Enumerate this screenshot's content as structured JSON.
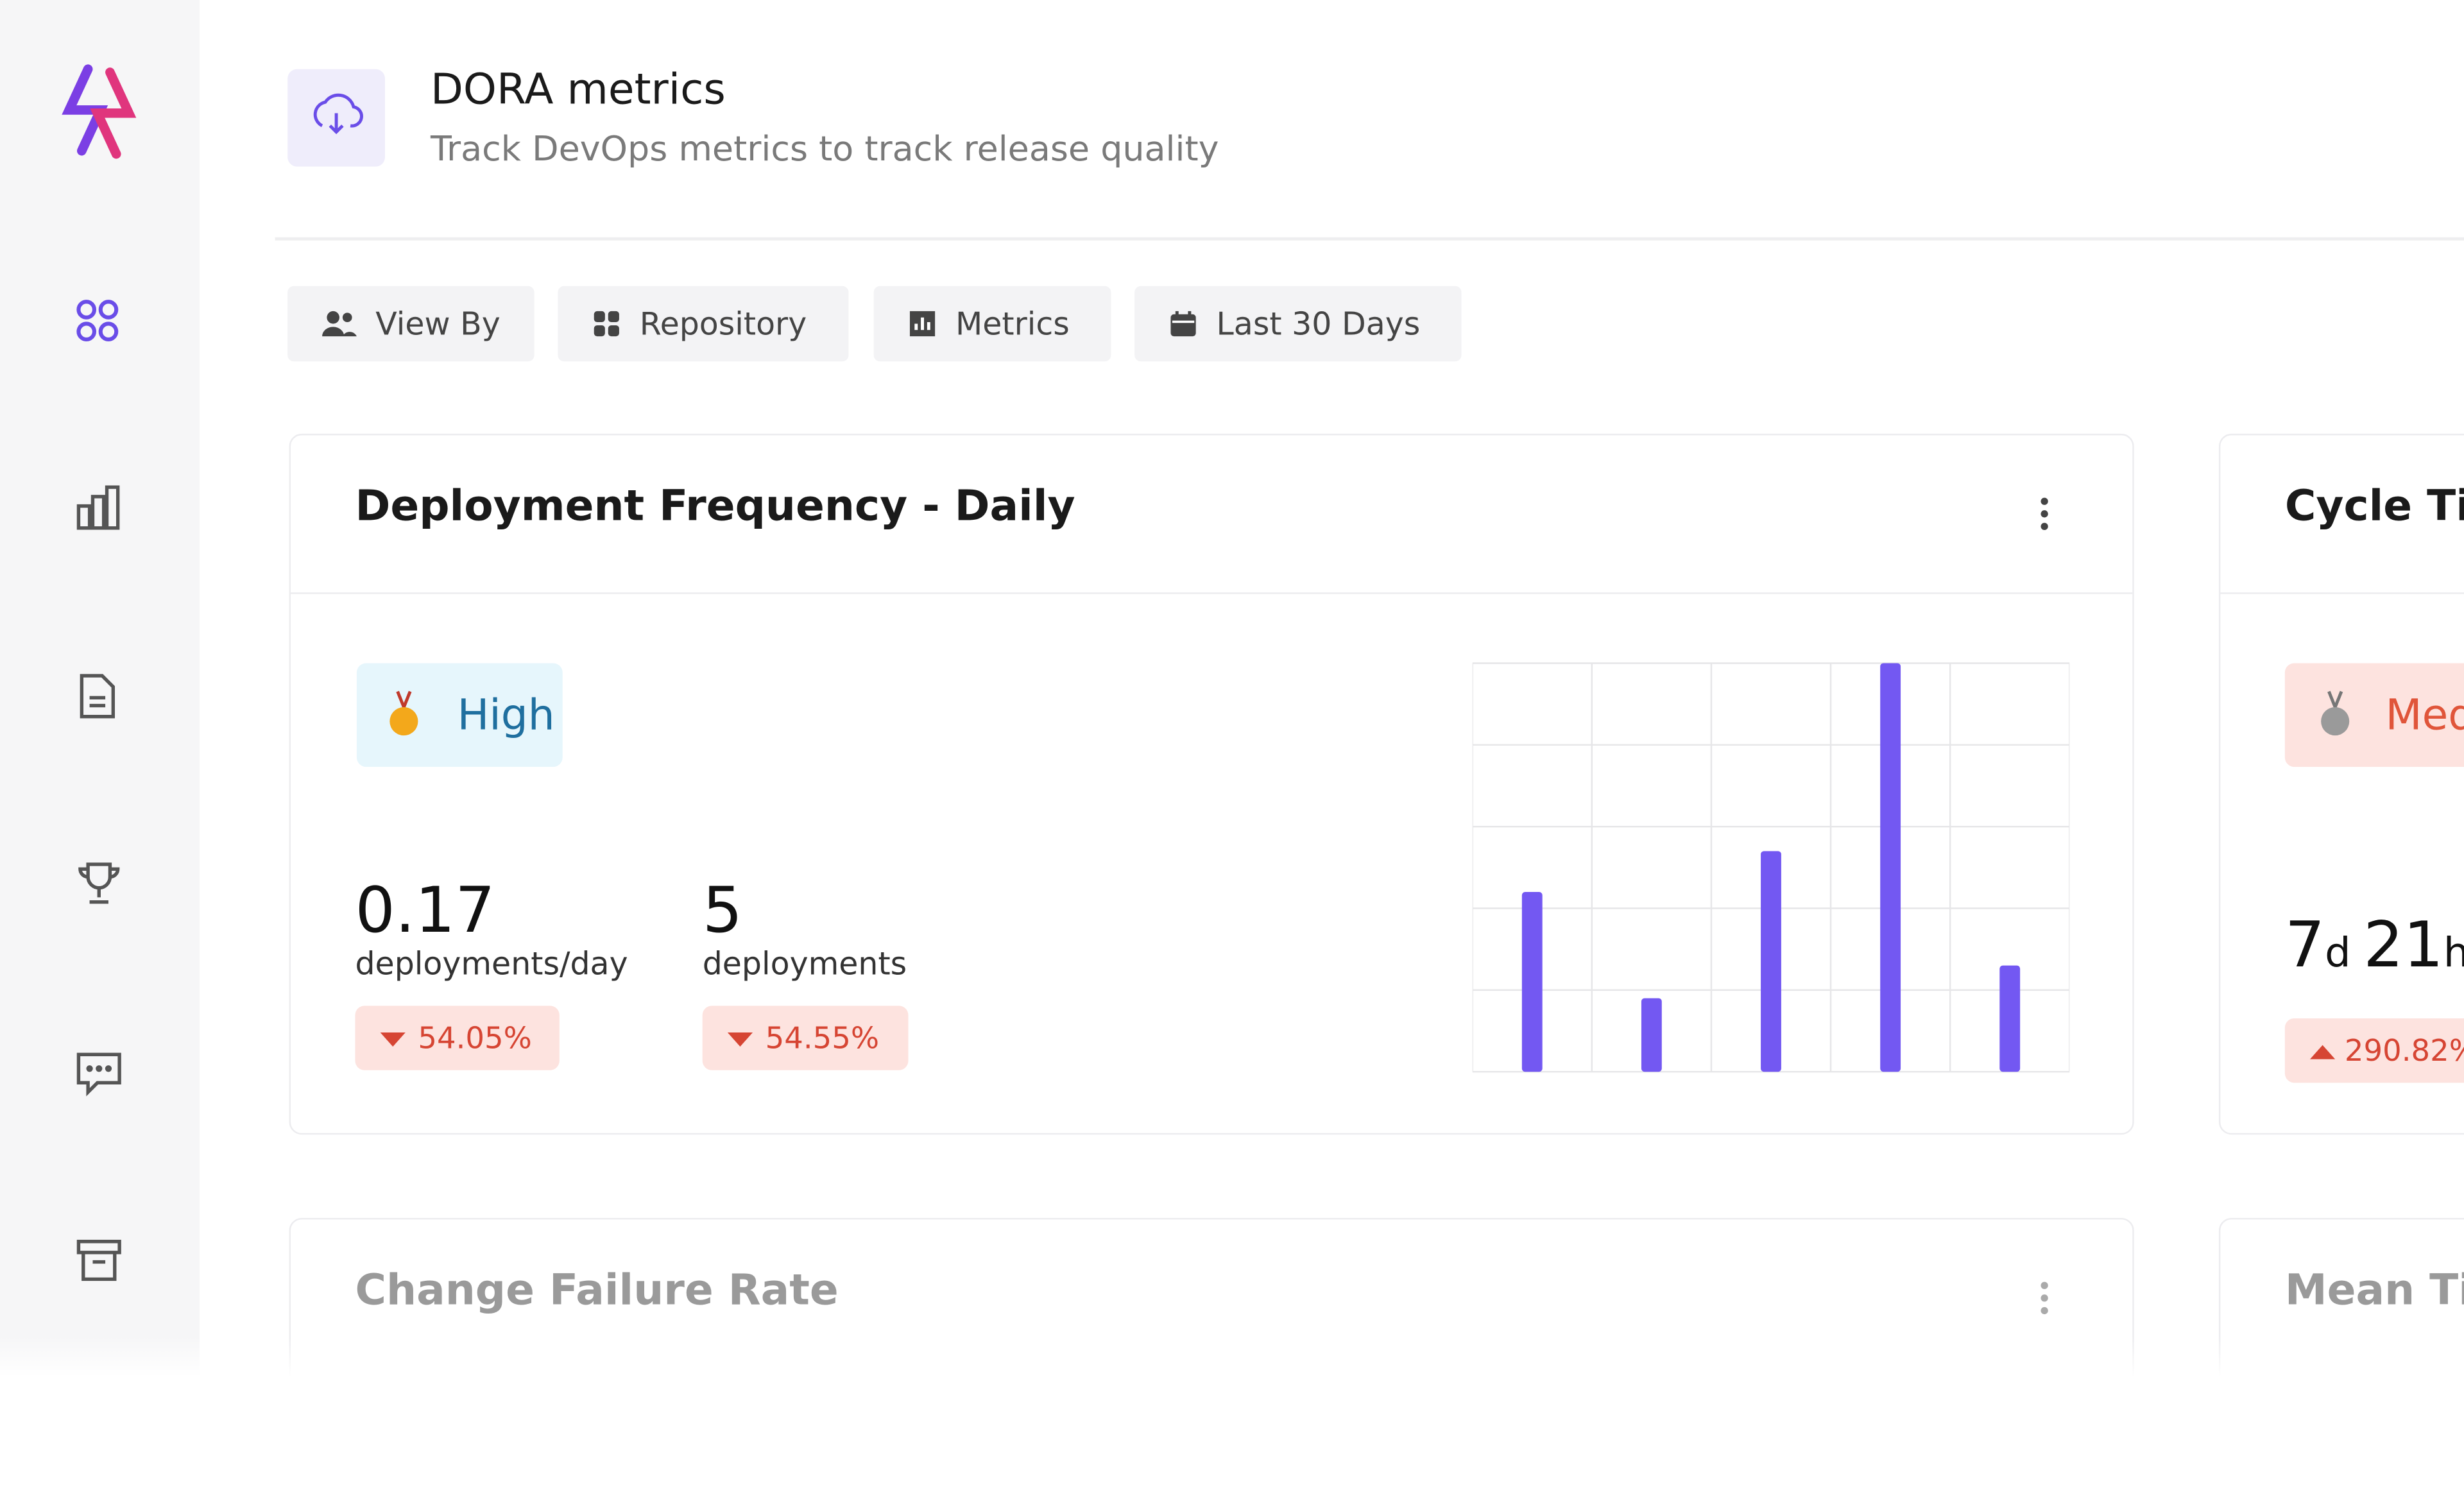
{
  "header": {
    "title": "DORA metrics",
    "subtitle": "Track DevOps metrics to track release quality"
  },
  "filters": [
    "View By",
    "Repository",
    "Metrics",
    "Last 30 Days"
  ],
  "cards": [
    {
      "title": "Deployment Frequency - Daily",
      "badge": "High",
      "stats": [
        {
          "value": "0.17",
          "unit": "deployments/day",
          "change": "54.05%"
        },
        {
          "value": "5",
          "unit": "deployments",
          "change": "54.55%"
        }
      ]
    },
    {
      "title": "Cycle Ti",
      "badge": "Medi",
      "value": [
        "7",
        "d",
        "21",
        "h"
      ],
      "change": "290.82%"
    },
    {
      "title": "Change Failure Rate"
    },
    {
      "title": "Mean Ti"
    }
  ],
  "chart_data": {
    "type": "bar",
    "categories": [
      null,
      null,
      null,
      null,
      null
    ],
    "values": [
      2.2,
      0.9,
      2.7,
      5,
      1.3
    ],
    "color": "#7358f2",
    "ylim": [
      0,
      5
    ],
    "yticks": [
      0,
      1,
      2,
      3,
      4,
      5
    ],
    "grid": true
  }
}
